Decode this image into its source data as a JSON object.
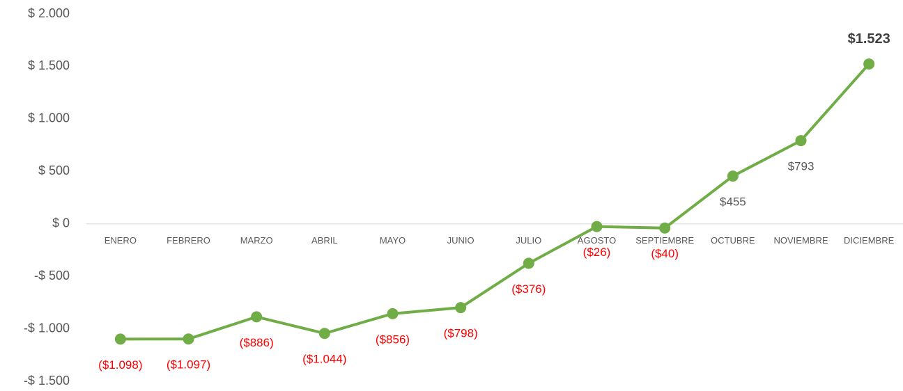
{
  "chart_data": {
    "type": "line",
    "categories": [
      "ENERO",
      "FEBRERO",
      "MARZO",
      "ABRIL",
      "MAYO",
      "JUNIO",
      "JULIO",
      "AGOSTO",
      "SEPTIEMBRE",
      "OCTUBRE",
      "NOVIEMBRE",
      "DICIEMBRE"
    ],
    "series": [
      {
        "color": "#70ad47",
        "values": [
          -1098,
          -1097,
          -886,
          -1044,
          -856,
          -798,
          -376,
          -26,
          -40,
          455,
          793,
          1523
        ],
        "value_labels": [
          "($1.098)",
          "($1.097)",
          "($886)",
          "($1.044)",
          "($856)",
          "($798)",
          "($376)",
          "($26)",
          "($40)",
          "$455",
          "$793",
          "$1.523"
        ]
      }
    ],
    "negative_label_color": "#ff0000",
    "ylim": [
      -1500,
      2000
    ],
    "yticks": [
      {
        "value": -1500,
        "label": "-$ 1.500"
      },
      {
        "value": -1000,
        "label": "-$ 1.000"
      },
      {
        "value": -500,
        "label": "-$ 500"
      },
      {
        "value": 0,
        "label": "$ 0"
      },
      {
        "value": 500,
        "label": "$ 500"
      },
      {
        "value": 1000,
        "label": "$ 1.000"
      },
      {
        "value": 1500,
        "label": "$ 1.500"
      },
      {
        "value": 2000,
        "label": "$ 2.000"
      }
    ],
    "grid": false
  }
}
